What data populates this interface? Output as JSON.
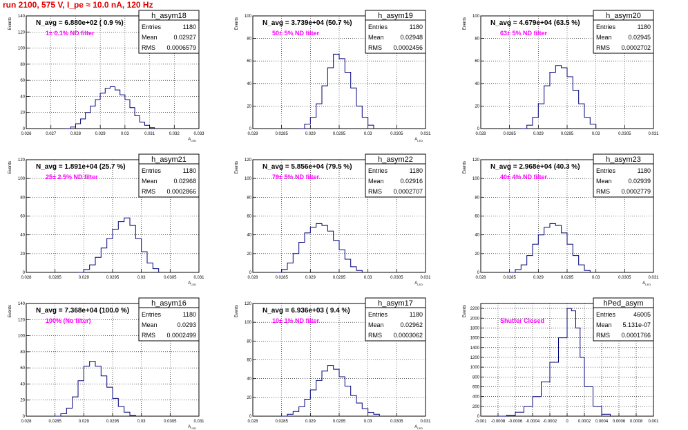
{
  "page_title": "run 2100,   575 V, I_pe ≈ 10.0 nA, 120 Hz",
  "chart_data": [
    {
      "type": "histogram",
      "hist_name": "h_asym18",
      "nlabel": "N_avg = 6.880e+02 ( 0.9 %)",
      "filter": "1± 0.1% ND filter",
      "entries": "1180",
      "mean": "0.02927",
      "rms": "0.0006579",
      "xlabel": "A_{LED}",
      "ylabel": "Events",
      "xlim": [
        0.026,
        0.033
      ],
      "ylim": [
        0,
        140
      ],
      "xticks": [
        "0.026",
        "0.027",
        "0.028",
        "0.029",
        "0.03",
        "0.031",
        "0.032",
        "0.033"
      ],
      "yticks": [
        "0",
        "20",
        "40",
        "60",
        "80",
        "100",
        "120",
        "140"
      ],
      "grid": true,
      "curve": [
        [
          0.0276,
          0
        ],
        [
          0.0278,
          2
        ],
        [
          0.028,
          6
        ],
        [
          0.0282,
          12
        ],
        [
          0.0284,
          20
        ],
        [
          0.0286,
          28
        ],
        [
          0.0288,
          36
        ],
        [
          0.029,
          44
        ],
        [
          0.0292,
          50
        ],
        [
          0.0294,
          52
        ],
        [
          0.0296,
          48
        ],
        [
          0.0298,
          42
        ],
        [
          0.03,
          36
        ],
        [
          0.0302,
          26
        ],
        [
          0.0304,
          16
        ],
        [
          0.0306,
          8
        ],
        [
          0.0308,
          4
        ],
        [
          0.031,
          1
        ],
        [
          0.0312,
          0
        ]
      ]
    },
    {
      "type": "histogram",
      "hist_name": "h_asym19",
      "nlabel": "N_avg = 3.739e+04 (50.7 %)",
      "filter": "50± 5% ND filter",
      "entries": "1180",
      "mean": "0.02948",
      "rms": "0.0002456",
      "xlabel": "A_{LED}",
      "ylabel": "Events",
      "xlim": [
        0.028,
        0.031
      ],
      "ylim": [
        0,
        100
      ],
      "xticks": [
        "0.028",
        "0.0285",
        "0.029",
        "0.0295",
        "0.03",
        "0.0305",
        "0.031"
      ],
      "yticks": [
        "0",
        "20",
        "40",
        "60",
        "80",
        "100"
      ],
      "grid": true,
      "curve": [
        [
          0.0288,
          0
        ],
        [
          0.0289,
          4
        ],
        [
          0.029,
          10
        ],
        [
          0.0291,
          22
        ],
        [
          0.0292,
          38
        ],
        [
          0.0293,
          54
        ],
        [
          0.0294,
          66
        ],
        [
          0.0295,
          62
        ],
        [
          0.0296,
          50
        ],
        [
          0.0297,
          36
        ],
        [
          0.0298,
          20
        ],
        [
          0.0299,
          10
        ],
        [
          0.03,
          3
        ],
        [
          0.0301,
          0
        ]
      ]
    },
    {
      "type": "histogram",
      "hist_name": "h_asym20",
      "nlabel": "N_avg = 4.679e+04 (63.5 %)",
      "filter": "63± 5% ND filter",
      "entries": "1180",
      "mean": "0.02945",
      "rms": "0.0002702",
      "xlabel": "",
      "ylabel": "Events",
      "xlim": [
        0.028,
        0.031
      ],
      "ylim": [
        0,
        100
      ],
      "xticks": [
        "0.028",
        "0.0285",
        "0.029",
        "0.0295",
        "0.03",
        "0.0305",
        "0.031"
      ],
      "yticks": [
        "0",
        "20",
        "40",
        "60",
        "80",
        "100"
      ],
      "grid": true,
      "curve": [
        [
          0.0287,
          0
        ],
        [
          0.0288,
          3
        ],
        [
          0.0289,
          10
        ],
        [
          0.029,
          22
        ],
        [
          0.0291,
          38
        ],
        [
          0.0292,
          50
        ],
        [
          0.0293,
          56
        ],
        [
          0.0294,
          54
        ],
        [
          0.0295,
          46
        ],
        [
          0.0296,
          34
        ],
        [
          0.0297,
          22
        ],
        [
          0.0298,
          10
        ],
        [
          0.0299,
          4
        ],
        [
          0.03,
          0
        ]
      ]
    },
    {
      "type": "histogram",
      "hist_name": "h_asym21",
      "nlabel": "N_avg = 1.891e+04 (25.7 %)",
      "filter": "25± 2.5% ND filter",
      "entries": "1180",
      "mean": "0.02968",
      "rms": "0.0002866",
      "xlabel": "A_{LED}",
      "ylabel": "Events",
      "xlim": [
        0.028,
        0.031
      ],
      "ylim": [
        0,
        120
      ],
      "xticks": [
        "0.028",
        "0.0285",
        "0.029",
        "0.0295",
        "0.03",
        "0.0305",
        "0.031"
      ],
      "yticks": [
        "0",
        "20",
        "40",
        "60",
        "80",
        "100",
        "120"
      ],
      "grid": true,
      "curve": [
        [
          0.0289,
          0
        ],
        [
          0.029,
          3
        ],
        [
          0.0291,
          8
        ],
        [
          0.0292,
          16
        ],
        [
          0.0293,
          26
        ],
        [
          0.0294,
          36
        ],
        [
          0.0295,
          46
        ],
        [
          0.0296,
          54
        ],
        [
          0.0297,
          58
        ],
        [
          0.0298,
          50
        ],
        [
          0.0299,
          36
        ],
        [
          0.03,
          22
        ],
        [
          0.0301,
          10
        ],
        [
          0.0302,
          4
        ],
        [
          0.0303,
          0
        ]
      ]
    },
    {
      "type": "histogram",
      "hist_name": "h_asym22",
      "nlabel": "N_avg = 5.856e+04 (79.5 %)",
      "filter": "79± 5% ND filter",
      "entries": "1180",
      "mean": "0.02916",
      "rms": "0.0002707",
      "xlabel": "A_{LED}",
      "ylabel": "Events",
      "xlim": [
        0.028,
        0.031
      ],
      "ylim": [
        0,
        120
      ],
      "xticks": [
        "0.028",
        "0.0285",
        "0.029",
        "0.0295",
        "0.03",
        "0.0305",
        "0.031"
      ],
      "yticks": [
        "0",
        "20",
        "40",
        "60",
        "80",
        "100",
        "120"
      ],
      "grid": true,
      "curve": [
        [
          0.0284,
          0
        ],
        [
          0.0285,
          3
        ],
        [
          0.0286,
          10
        ],
        [
          0.0287,
          20
        ],
        [
          0.0288,
          32
        ],
        [
          0.0289,
          42
        ],
        [
          0.029,
          48
        ],
        [
          0.0291,
          52
        ],
        [
          0.0292,
          50
        ],
        [
          0.0293,
          44
        ],
        [
          0.0294,
          34
        ],
        [
          0.0295,
          24
        ],
        [
          0.0296,
          14
        ],
        [
          0.0297,
          6
        ],
        [
          0.0298,
          2
        ],
        [
          0.0299,
          0
        ]
      ]
    },
    {
      "type": "histogram",
      "hist_name": "h_asym23",
      "nlabel": "N_avg = 2.968e+04 (40.3 %)",
      "filter": "40± 4% ND filter",
      "entries": "1180",
      "mean": "0.02939",
      "rms": "0.0002779",
      "xlabel": "A_{LED}",
      "ylabel": "Events",
      "xlim": [
        0.028,
        0.031
      ],
      "ylim": [
        0,
        120
      ],
      "xticks": [
        "0.028",
        "0.0285",
        "0.029",
        "0.0295",
        "0.03",
        "0.0305",
        "0.031"
      ],
      "yticks": [
        "0",
        "20",
        "40",
        "60",
        "80",
        "100",
        "120"
      ],
      "grid": true,
      "curve": [
        [
          0.0285,
          0
        ],
        [
          0.0286,
          3
        ],
        [
          0.0287,
          8
        ],
        [
          0.0288,
          18
        ],
        [
          0.0289,
          30
        ],
        [
          0.029,
          40
        ],
        [
          0.0291,
          48
        ],
        [
          0.0292,
          52
        ],
        [
          0.0293,
          50
        ],
        [
          0.0294,
          42
        ],
        [
          0.0295,
          30
        ],
        [
          0.0296,
          18
        ],
        [
          0.0297,
          8
        ],
        [
          0.0298,
          2
        ],
        [
          0.0299,
          0
        ]
      ]
    },
    {
      "type": "histogram",
      "hist_name": "h_asym16",
      "nlabel": "N_avg = 7.368e+04 (100.0 %)",
      "filter": "100% (No filter)",
      "entries": "1180",
      "mean": "0.0293",
      "rms": "0.0002499",
      "xlabel": "A_{LED}",
      "ylabel": "Events",
      "xlim": [
        0.028,
        0.031
      ],
      "ylim": [
        0,
        140
      ],
      "xticks": [
        "0.028",
        "0.0285",
        "0.029",
        "0.0295",
        "0.03",
        "0.0305",
        "0.031"
      ],
      "yticks": [
        "0",
        "20",
        "40",
        "60",
        "80",
        "100",
        "120",
        "140"
      ],
      "grid": true,
      "curve": [
        [
          0.0285,
          0
        ],
        [
          0.0286,
          3
        ],
        [
          0.0287,
          10
        ],
        [
          0.0288,
          24
        ],
        [
          0.0289,
          44
        ],
        [
          0.029,
          62
        ],
        [
          0.0291,
          68
        ],
        [
          0.0292,
          62
        ],
        [
          0.0293,
          50
        ],
        [
          0.0294,
          36
        ],
        [
          0.0295,
          22
        ],
        [
          0.0296,
          12
        ],
        [
          0.0297,
          5
        ],
        [
          0.0298,
          1
        ],
        [
          0.0299,
          0
        ]
      ]
    },
    {
      "type": "histogram",
      "hist_name": "h_asym17",
      "nlabel": "N_avg = 6.936e+03 ( 9.4 %)",
      "filter": "10± 1% ND filter",
      "entries": "1180",
      "mean": "0.02962",
      "rms": "0.0003062",
      "xlabel": "A_{LED}",
      "ylabel": "Events",
      "xlim": [
        0.028,
        0.031
      ],
      "ylim": [
        0,
        120
      ],
      "xticks": [
        "0.028",
        "0.0285",
        "0.029",
        "0.0295",
        "0.03",
        "0.0305",
        "0.031"
      ],
      "yticks": [
        "0",
        "20",
        "40",
        "60",
        "80",
        "100",
        "120"
      ],
      "grid": true,
      "curve": [
        [
          0.0285,
          0
        ],
        [
          0.0286,
          2
        ],
        [
          0.0287,
          5
        ],
        [
          0.0288,
          10
        ],
        [
          0.0289,
          18
        ],
        [
          0.029,
          28
        ],
        [
          0.0291,
          38
        ],
        [
          0.0292,
          48
        ],
        [
          0.0293,
          54
        ],
        [
          0.0294,
          50
        ],
        [
          0.0295,
          42
        ],
        [
          0.0296,
          32
        ],
        [
          0.0297,
          22
        ],
        [
          0.0298,
          14
        ],
        [
          0.0299,
          8
        ],
        [
          0.03,
          4
        ],
        [
          0.0301,
          2
        ],
        [
          0.0302,
          0
        ]
      ]
    },
    {
      "type": "histogram",
      "hist_name": "hPed_asym",
      "nlabel": "",
      "filter": "Shutter Closed",
      "entries": "46005",
      "mean": "5.131e-07",
      "rms": "0.0001766",
      "xlabel": "",
      "ylabel": "Events",
      "xlim": [
        -0.001,
        0.001
      ],
      "ylim": [
        0,
        2300
      ],
      "xticks": [
        "-0.001",
        "-0.0008",
        "-0.0006",
        "-0.0004",
        "-0.0002",
        "0",
        "0.0002",
        "0.0004",
        "0.0006",
        "0.0008",
        "0.001"
      ],
      "yticks": [
        "0",
        "200",
        "400",
        "600",
        "800",
        "1000",
        "1200",
        "1400",
        "1600",
        "1800",
        "2000",
        "2200"
      ],
      "grid": true,
      "curve": [
        [
          -0.0008,
          0
        ],
        [
          -0.0007,
          20
        ],
        [
          -0.0006,
          80
        ],
        [
          -0.0005,
          200
        ],
        [
          -0.0004,
          400
        ],
        [
          -0.0003,
          700
        ],
        [
          -0.0002,
          1100
        ],
        [
          -0.0001,
          1600
        ],
        [
          0.0,
          2200
        ],
        [
          5e-05,
          2150
        ],
        [
          0.0001,
          1800
        ],
        [
          0.00015,
          1200
        ],
        [
          0.0002,
          600
        ],
        [
          0.0003,
          200
        ],
        [
          0.0004,
          40
        ],
        [
          0.0005,
          0
        ]
      ]
    }
  ],
  "colors": {
    "title": "#e00000",
    "annotation": "#ff00ff",
    "line": "#00007a",
    "grid": "#000000",
    "text": "#000000"
  }
}
